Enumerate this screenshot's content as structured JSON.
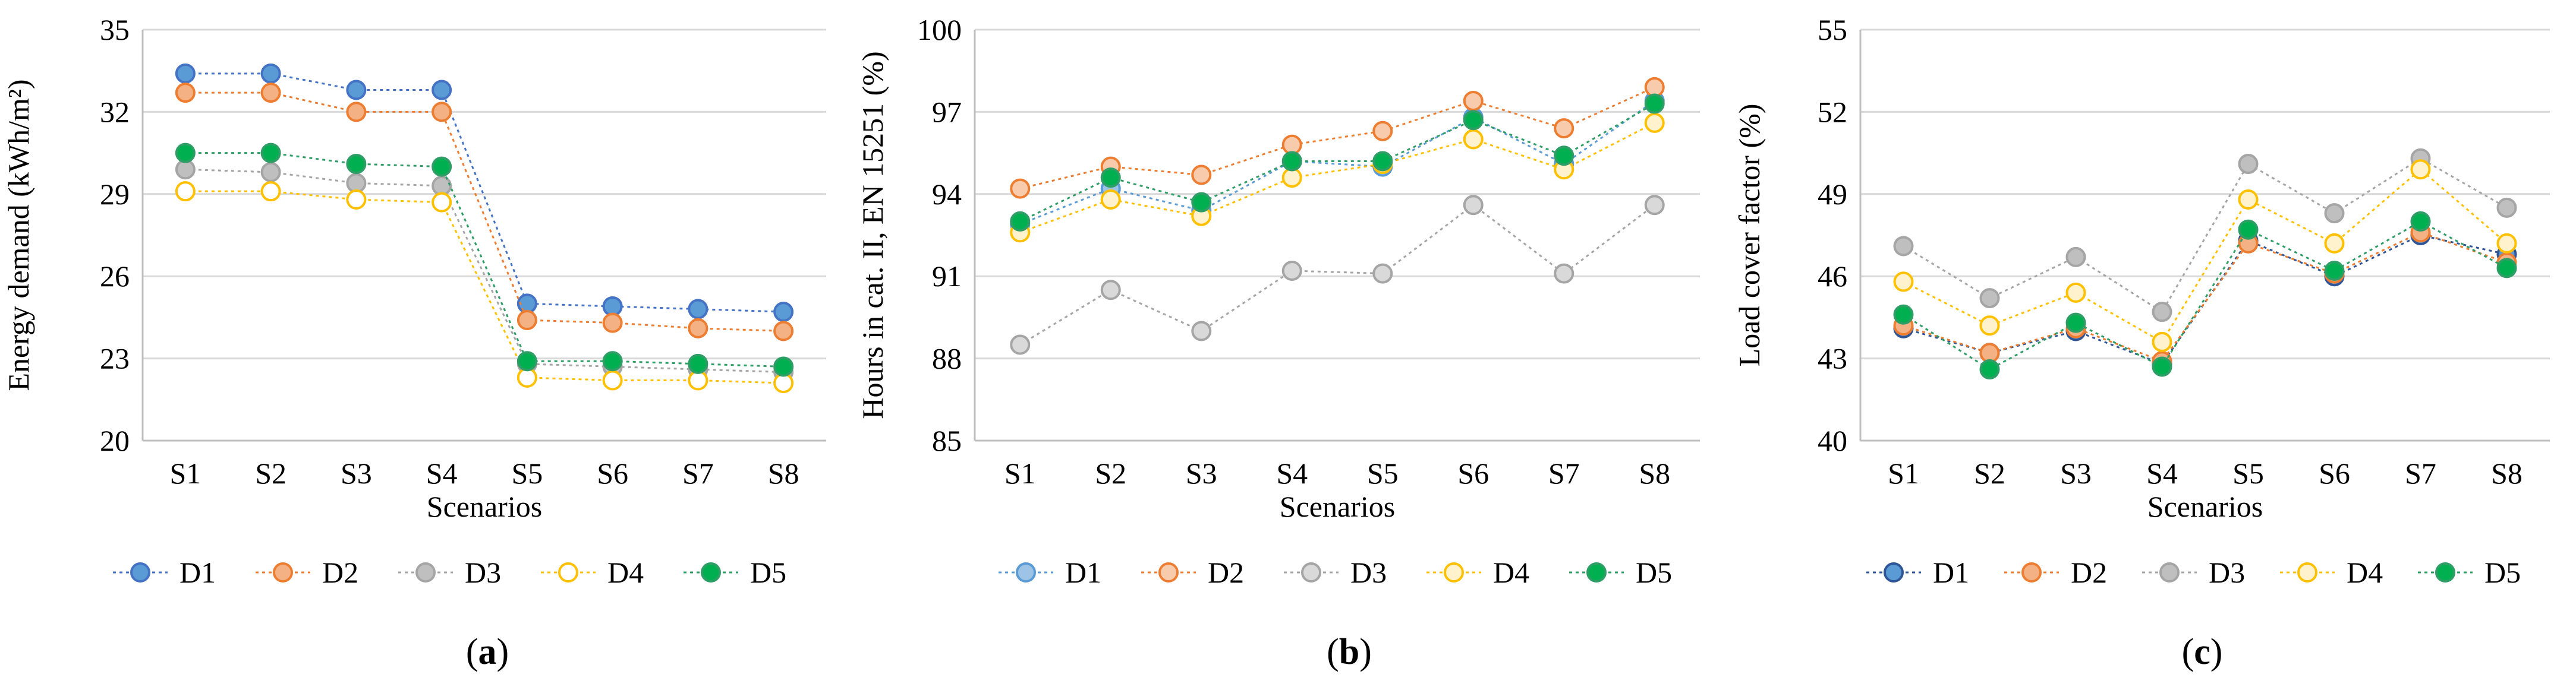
{
  "figure": {
    "panels": [
      "(a)",
      "(b)",
      "(c)"
    ]
  },
  "chart_data": [
    {
      "id": "a",
      "type": "line",
      "panel_label": "(a)",
      "title": "",
      "xlabel": "Scenarios",
      "ylabel": "Energy demand (kWh/m²)",
      "categories": [
        "S1",
        "S2",
        "S3",
        "S4",
        "S5",
        "S6",
        "S7",
        "S8"
      ],
      "ylim": [
        20,
        35
      ],
      "yticks": [
        20,
        23,
        26,
        29,
        32,
        35
      ],
      "grid": true,
      "legend_position": "bottom",
      "series": [
        {
          "name": "D1",
          "color": "#5B9BD5",
          "edge": "#4472C4",
          "values": [
            33.4,
            33.4,
            32.8,
            32.8,
            25.0,
            24.9,
            24.8,
            24.7
          ]
        },
        {
          "name": "D2",
          "color": "#F4B183",
          "edge": "#ED7D31",
          "values": [
            32.7,
            32.7,
            32.0,
            32.0,
            24.4,
            24.3,
            24.1,
            24.0
          ]
        },
        {
          "name": "D3",
          "color": "#BFBFBF",
          "edge": "#A5A5A5",
          "values": [
            29.9,
            29.8,
            29.4,
            29.3,
            22.8,
            22.7,
            22.6,
            22.5
          ]
        },
        {
          "name": "D4",
          "color": "#FFFFFF",
          "edge": "#FFC000",
          "values": [
            29.1,
            29.1,
            28.8,
            28.7,
            22.3,
            22.2,
            22.2,
            22.1
          ]
        },
        {
          "name": "D5",
          "color": "#00B050",
          "edge": "#2E9E66",
          "values": [
            30.5,
            30.5,
            30.1,
            30.0,
            22.9,
            22.9,
            22.8,
            22.7
          ]
        }
      ]
    },
    {
      "id": "b",
      "type": "line",
      "panel_label": "(b)",
      "title": "",
      "xlabel": "Scenarios",
      "ylabel": "Hours in cat. II, EN 15251 (%)",
      "categories": [
        "S1",
        "S2",
        "S3",
        "S4",
        "S5",
        "S6",
        "S7",
        "S8"
      ],
      "ylim": [
        85,
        100
      ],
      "yticks": [
        85,
        88,
        91,
        94,
        97,
        100
      ],
      "grid": true,
      "legend_position": "bottom",
      "series": [
        {
          "name": "D1",
          "color": "#9DC3E6",
          "edge": "#5B9BD5",
          "values": [
            92.9,
            94.2,
            93.4,
            95.2,
            95.0,
            96.8,
            95.1,
            97.4
          ]
        },
        {
          "name": "D2",
          "color": "#F8CBAD",
          "edge": "#ED7D31",
          "values": [
            94.2,
            95.0,
            94.7,
            95.8,
            96.3,
            97.4,
            96.4,
            97.9
          ]
        },
        {
          "name": "D3",
          "color": "#D9D9D9",
          "edge": "#A5A5A5",
          "values": [
            88.5,
            90.5,
            89.0,
            91.2,
            91.1,
            93.6,
            91.1,
            93.6
          ]
        },
        {
          "name": "D4",
          "color": "#FFF2CC",
          "edge": "#FFC000",
          "values": [
            92.6,
            93.8,
            93.2,
            94.6,
            95.1,
            96.0,
            94.9,
            96.6
          ]
        },
        {
          "name": "D5",
          "color": "#00B050",
          "edge": "#2E9E66",
          "values": [
            93.0,
            94.6,
            93.7,
            95.2,
            95.2,
            96.7,
            95.4,
            97.3
          ]
        }
      ]
    },
    {
      "id": "c",
      "type": "line",
      "panel_label": "(c)",
      "title": "",
      "xlabel": "Scenarios",
      "ylabel": "Load cover factor (%)",
      "categories": [
        "S1",
        "S2",
        "S3",
        "S4",
        "S5",
        "S6",
        "S7",
        "S8"
      ],
      "ylim": [
        40,
        55
      ],
      "yticks": [
        40,
        43,
        46,
        49,
        52,
        55
      ],
      "grid": true,
      "legend_position": "bottom",
      "series": [
        {
          "name": "D1",
          "color": "#5B9BD5",
          "edge": "#2F5597",
          "values": [
            44.1,
            43.2,
            44.0,
            42.8,
            47.3,
            46.0,
            47.5,
            46.8
          ]
        },
        {
          "name": "D2",
          "color": "#F4B183",
          "edge": "#ED7D31",
          "values": [
            44.2,
            43.2,
            44.1,
            42.9,
            47.2,
            46.1,
            47.6,
            46.5
          ]
        },
        {
          "name": "D3",
          "color": "#BFBFBF",
          "edge": "#A5A5A5",
          "values": [
            47.1,
            45.2,
            46.7,
            44.7,
            50.1,
            48.3,
            50.3,
            48.5
          ]
        },
        {
          "name": "D4",
          "color": "#FFF2CC",
          "edge": "#FFC000",
          "values": [
            45.8,
            44.2,
            45.4,
            43.6,
            48.8,
            47.2,
            49.9,
            47.2
          ]
        },
        {
          "name": "D5",
          "color": "#00B050",
          "edge": "#2E9E66",
          "values": [
            44.6,
            42.6,
            44.3,
            42.7,
            47.7,
            46.2,
            48.0,
            46.3
          ]
        }
      ]
    }
  ]
}
